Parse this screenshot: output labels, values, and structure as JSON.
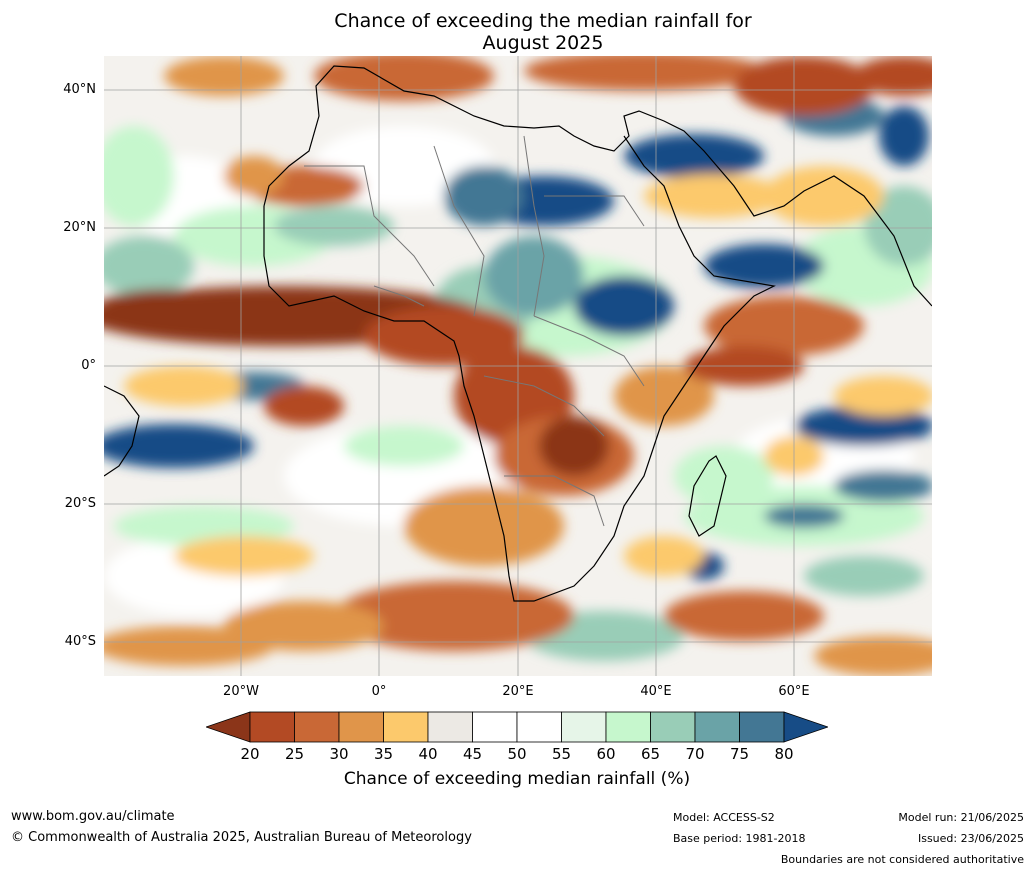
{
  "title_line1": "Chance of exceeding the median rainfall for",
  "title_line2": "August 2025",
  "lat_labels": [
    "40°N",
    "20°N",
    "0°",
    "20°S",
    "40°S"
  ],
  "lon_labels": [
    "20°W",
    "0°",
    "20°E",
    "40°E",
    "60°E"
  ],
  "colorbar": {
    "ticks": [
      "20",
      "25",
      "30",
      "35",
      "40",
      "45",
      "50",
      "55",
      "60",
      "65",
      "70",
      "75",
      "80"
    ],
    "label": "Chance of exceeding median rainfall (%)",
    "colors": [
      "#8b3519",
      "#b34a24",
      "#c96836",
      "#e0954a",
      "#fcc96c",
      "#ece9e4",
      "#ffffff",
      "#ffffff",
      "#e6f5e8",
      "#c6f7cd",
      "#99cdb7",
      "#6aa3a7",
      "#437794",
      "#174c86"
    ]
  },
  "footer": {
    "url": "www.bom.gov.au/climate",
    "copyright": "© Commonwealth of Australia 2025, Australian Bureau of Meteorology",
    "model": "Model: ACCESS-S2",
    "base_period": "Base period: 1981-2018",
    "model_run": "Model run: 21/06/2025",
    "issued": "Issued: 23/06/2025",
    "boundaries_note": "Boundaries are not considered authoritative"
  }
}
